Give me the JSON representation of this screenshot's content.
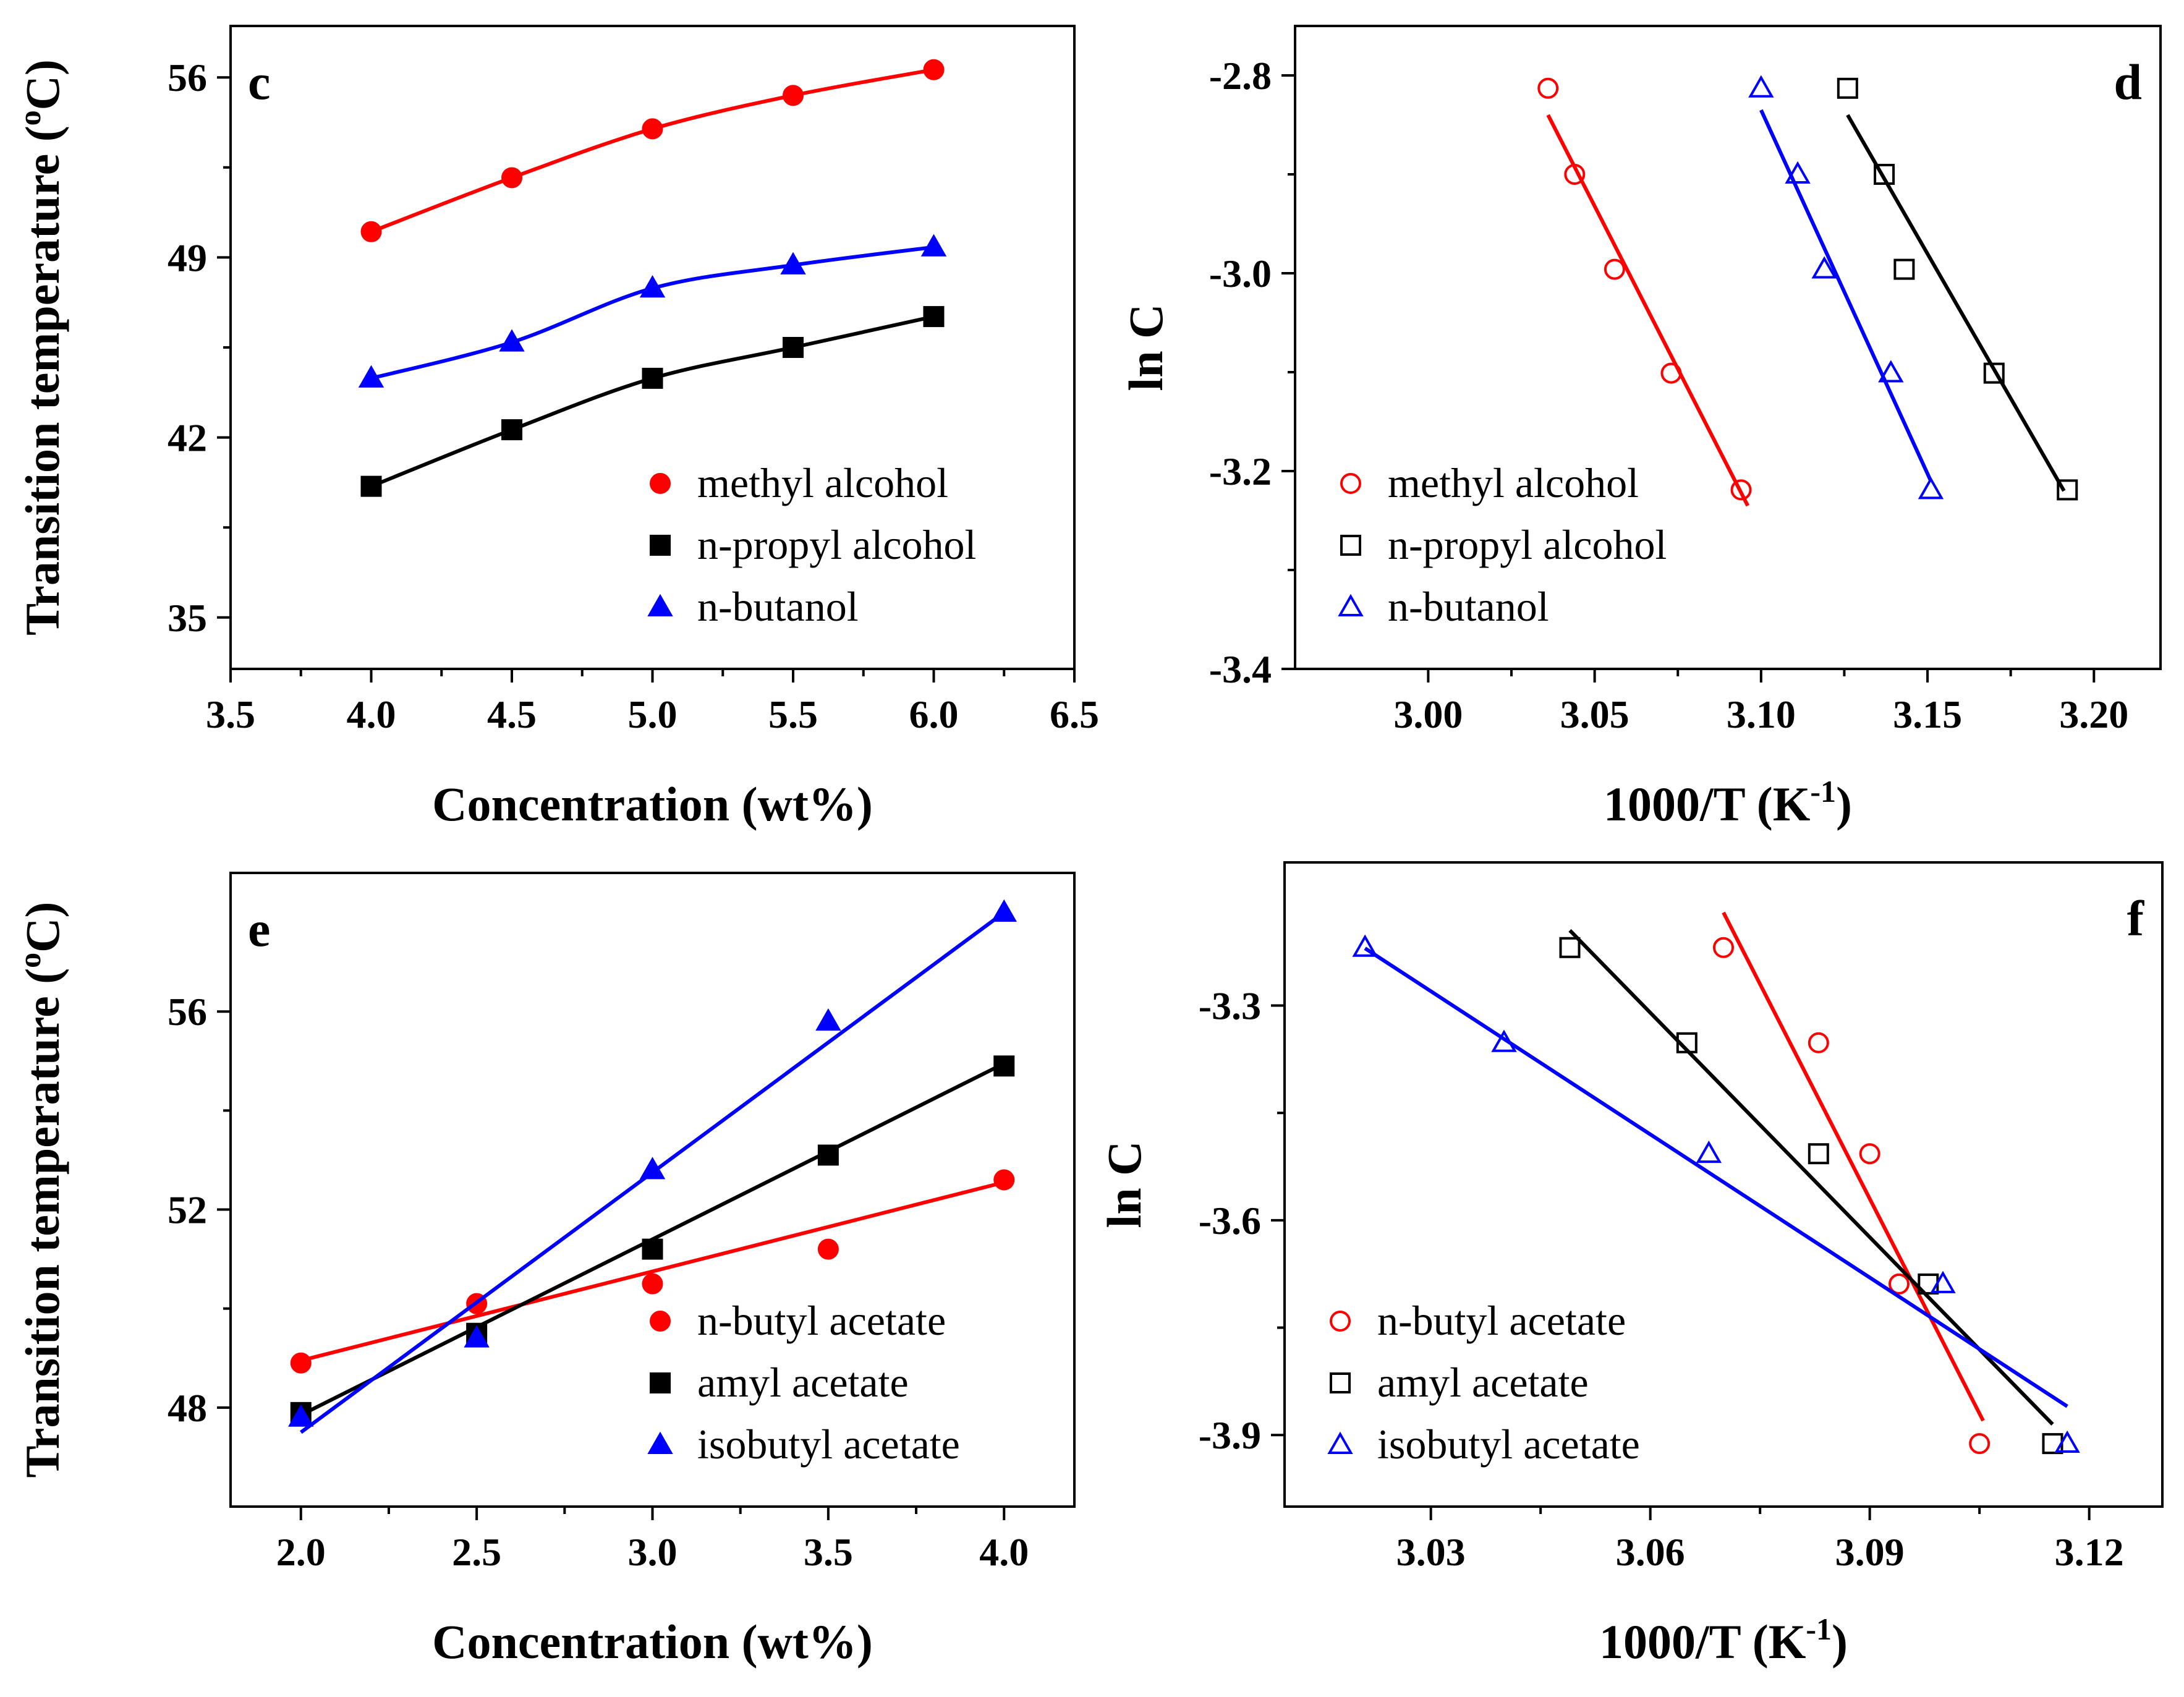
{
  "chart_data": [
    {
      "id": "c",
      "type": "scatter",
      "panel_label": "c",
      "xlabel": "Concentration (wt%)",
      "ylabel": "Transition temperature (oC)",
      "xlim": [
        3.5,
        6.5
      ],
      "ylim": [
        33.0,
        58.0
      ],
      "xticks": [
        "3.5",
        "4.0",
        "4.5",
        "5.0",
        "5.5",
        "6.0",
        "6.5"
      ],
      "yticks": [
        "35",
        "42",
        "49",
        "56"
      ],
      "legend_position": "bottom-right",
      "fit": "curve",
      "series": [
        {
          "name": "methyl alcohol",
          "color": "#ff0000",
          "marker": "filled-circle",
          "x": [
            4.0,
            4.5,
            5.0,
            5.5,
            6.0
          ],
          "y": [
            50.0,
            52.1,
            54.0,
            55.3,
            56.3
          ]
        },
        {
          "name": "n-propyl alcohol",
          "color": "#000000",
          "marker": "filled-square",
          "x": [
            4.0,
            4.5,
            5.0,
            5.5,
            6.0
          ],
          "y": [
            40.1,
            42.3,
            44.3,
            45.5,
            46.7
          ]
        },
        {
          "name": "n-butanol",
          "color": "#0000ff",
          "marker": "filled-triangle",
          "x": [
            4.0,
            4.5,
            5.0,
            5.5,
            6.0
          ],
          "y": [
            44.3,
            45.7,
            47.8,
            48.7,
            49.4
          ]
        }
      ]
    },
    {
      "id": "d",
      "type": "scatter",
      "panel_label": "d",
      "xlabel": "1000/T (K-1)",
      "ylabel": "ln C",
      "xlim": [
        2.96,
        3.22
      ],
      "ylim": [
        -3.4,
        -2.75
      ],
      "xticks": [
        "3.00",
        "3.05",
        "3.10",
        "3.15",
        "3.20"
      ],
      "yticks": [
        "-2.8",
        "-3.0",
        "-3.2",
        "-3.4"
      ],
      "legend_position": "bottom-left",
      "fit": "linear",
      "series": [
        {
          "name": "methyl alcohol",
          "color": "#ff0000",
          "marker": "open-circle",
          "x": [
            3.036,
            3.044,
            3.056,
            3.073,
            3.094
          ],
          "y": [
            -2.813,
            -2.9,
            -2.996,
            -3.101,
            -3.219
          ],
          "fit_line": [
            [
              3.036,
              -2.84
            ],
            [
              3.096,
              -3.235
            ]
          ]
        },
        {
          "name": "n-propyl alcohol",
          "color": "#000000",
          "marker": "open-square",
          "x": [
            3.126,
            3.137,
            3.143,
            3.17,
            3.192
          ],
          "y": [
            -2.813,
            -2.9,
            -2.996,
            -3.101,
            -3.219
          ],
          "fit_line": [
            [
              3.126,
              -2.84
            ],
            [
              3.191,
              -3.22
            ]
          ]
        },
        {
          "name": "n-butanol",
          "color": "#0000ff",
          "marker": "open-triangle",
          "x": [
            3.1,
            3.111,
            3.119,
            3.139,
            3.151
          ],
          "y": [
            -2.813,
            -2.9,
            -2.996,
            -3.101,
            -3.219
          ],
          "fit_line": [
            [
              3.1,
              -2.835
            ],
            [
              3.151,
              -3.21
            ]
          ]
        }
      ]
    },
    {
      "id": "e",
      "type": "scatter",
      "panel_label": "e",
      "xlabel": "Concentration (wt%)",
      "ylabel": "Transition temperature (oC)",
      "xlim": [
        1.8,
        4.2
      ],
      "ylim": [
        46.0,
        58.8
      ],
      "xticks": [
        "2.0",
        "2.5",
        "3.0",
        "3.5",
        "4.0"
      ],
      "yticks": [
        "48",
        "52",
        "56"
      ],
      "legend_position": "bottom-right",
      "fit": "linear",
      "series": [
        {
          "name": "n-butyl acetate",
          "color": "#ff0000",
          "marker": "filled-circle",
          "x": [
            2.0,
            2.5,
            3.0,
            3.5,
            4.0
          ],
          "y": [
            48.9,
            50.1,
            50.5,
            51.2,
            52.6
          ],
          "fit_line": [
            [
              2.0,
              48.95
            ],
            [
              4.0,
              52.55
            ]
          ]
        },
        {
          "name": "amyl acetate",
          "color": "#000000",
          "marker": "filled-square",
          "x": [
            2.0,
            2.5,
            3.0,
            3.5,
            4.0
          ],
          "y": [
            47.9,
            49.5,
            51.2,
            53.1,
            54.9
          ],
          "fit_line": [
            [
              2.0,
              47.85
            ],
            [
              4.0,
              54.95
            ]
          ]
        },
        {
          "name": "isobutyl acetate",
          "color": "#0000ff",
          "marker": "filled-triangle",
          "x": [
            2.0,
            2.5,
            3.0,
            3.5,
            4.0
          ],
          "y": [
            47.8,
            49.4,
            52.8,
            55.8,
            58.0
          ],
          "fit_line": [
            [
              2.0,
              47.5
            ],
            [
              4.0,
              58.0
            ]
          ]
        }
      ]
    },
    {
      "id": "f",
      "type": "scatter",
      "panel_label": "f",
      "xlabel": "1000/T (K-1)",
      "ylabel": "ln C",
      "xlim": [
        3.01,
        3.13
      ],
      "ylim": [
        -4.0,
        -3.1
      ],
      "xticks": [
        "3.03",
        "3.06",
        "3.09",
        "3.12"
      ],
      "yticks": [
        "-3.3",
        "-3.6",
        "-3.9"
      ],
      "legend_position": "bottom-left",
      "fit": "linear",
      "series": [
        {
          "name": "n-butyl acetate",
          "color": "#ff0000",
          "marker": "open-circle",
          "x": [
            3.07,
            3.083,
            3.09,
            3.094,
            3.105
          ],
          "y": [
            -3.219,
            -3.352,
            -3.507,
            -3.689,
            -3.912
          ],
          "fit_line": [
            [
              3.07,
              -3.17
            ],
            [
              3.1055,
              -3.88
            ]
          ]
        },
        {
          "name": "amyl acetate",
          "color": "#000000",
          "marker": "open-square",
          "x": [
            3.049,
            3.065,
            3.083,
            3.098,
            3.115
          ],
          "y": [
            -3.219,
            -3.352,
            -3.507,
            -3.689,
            -3.912
          ],
          "fit_line": [
            [
              3.049,
              -3.195
            ],
            [
              3.115,
              -3.885
            ]
          ]
        },
        {
          "name": "isobutyl acetate",
          "color": "#0000ff",
          "marker": "open-triangle",
          "x": [
            3.021,
            3.04,
            3.068,
            3.1,
            3.117
          ],
          "y": [
            -3.219,
            -3.352,
            -3.507,
            -3.689,
            -3.912
          ],
          "fit_line": [
            [
              3.021,
              -3.22
            ],
            [
              3.117,
              -3.86
            ]
          ]
        }
      ]
    }
  ]
}
